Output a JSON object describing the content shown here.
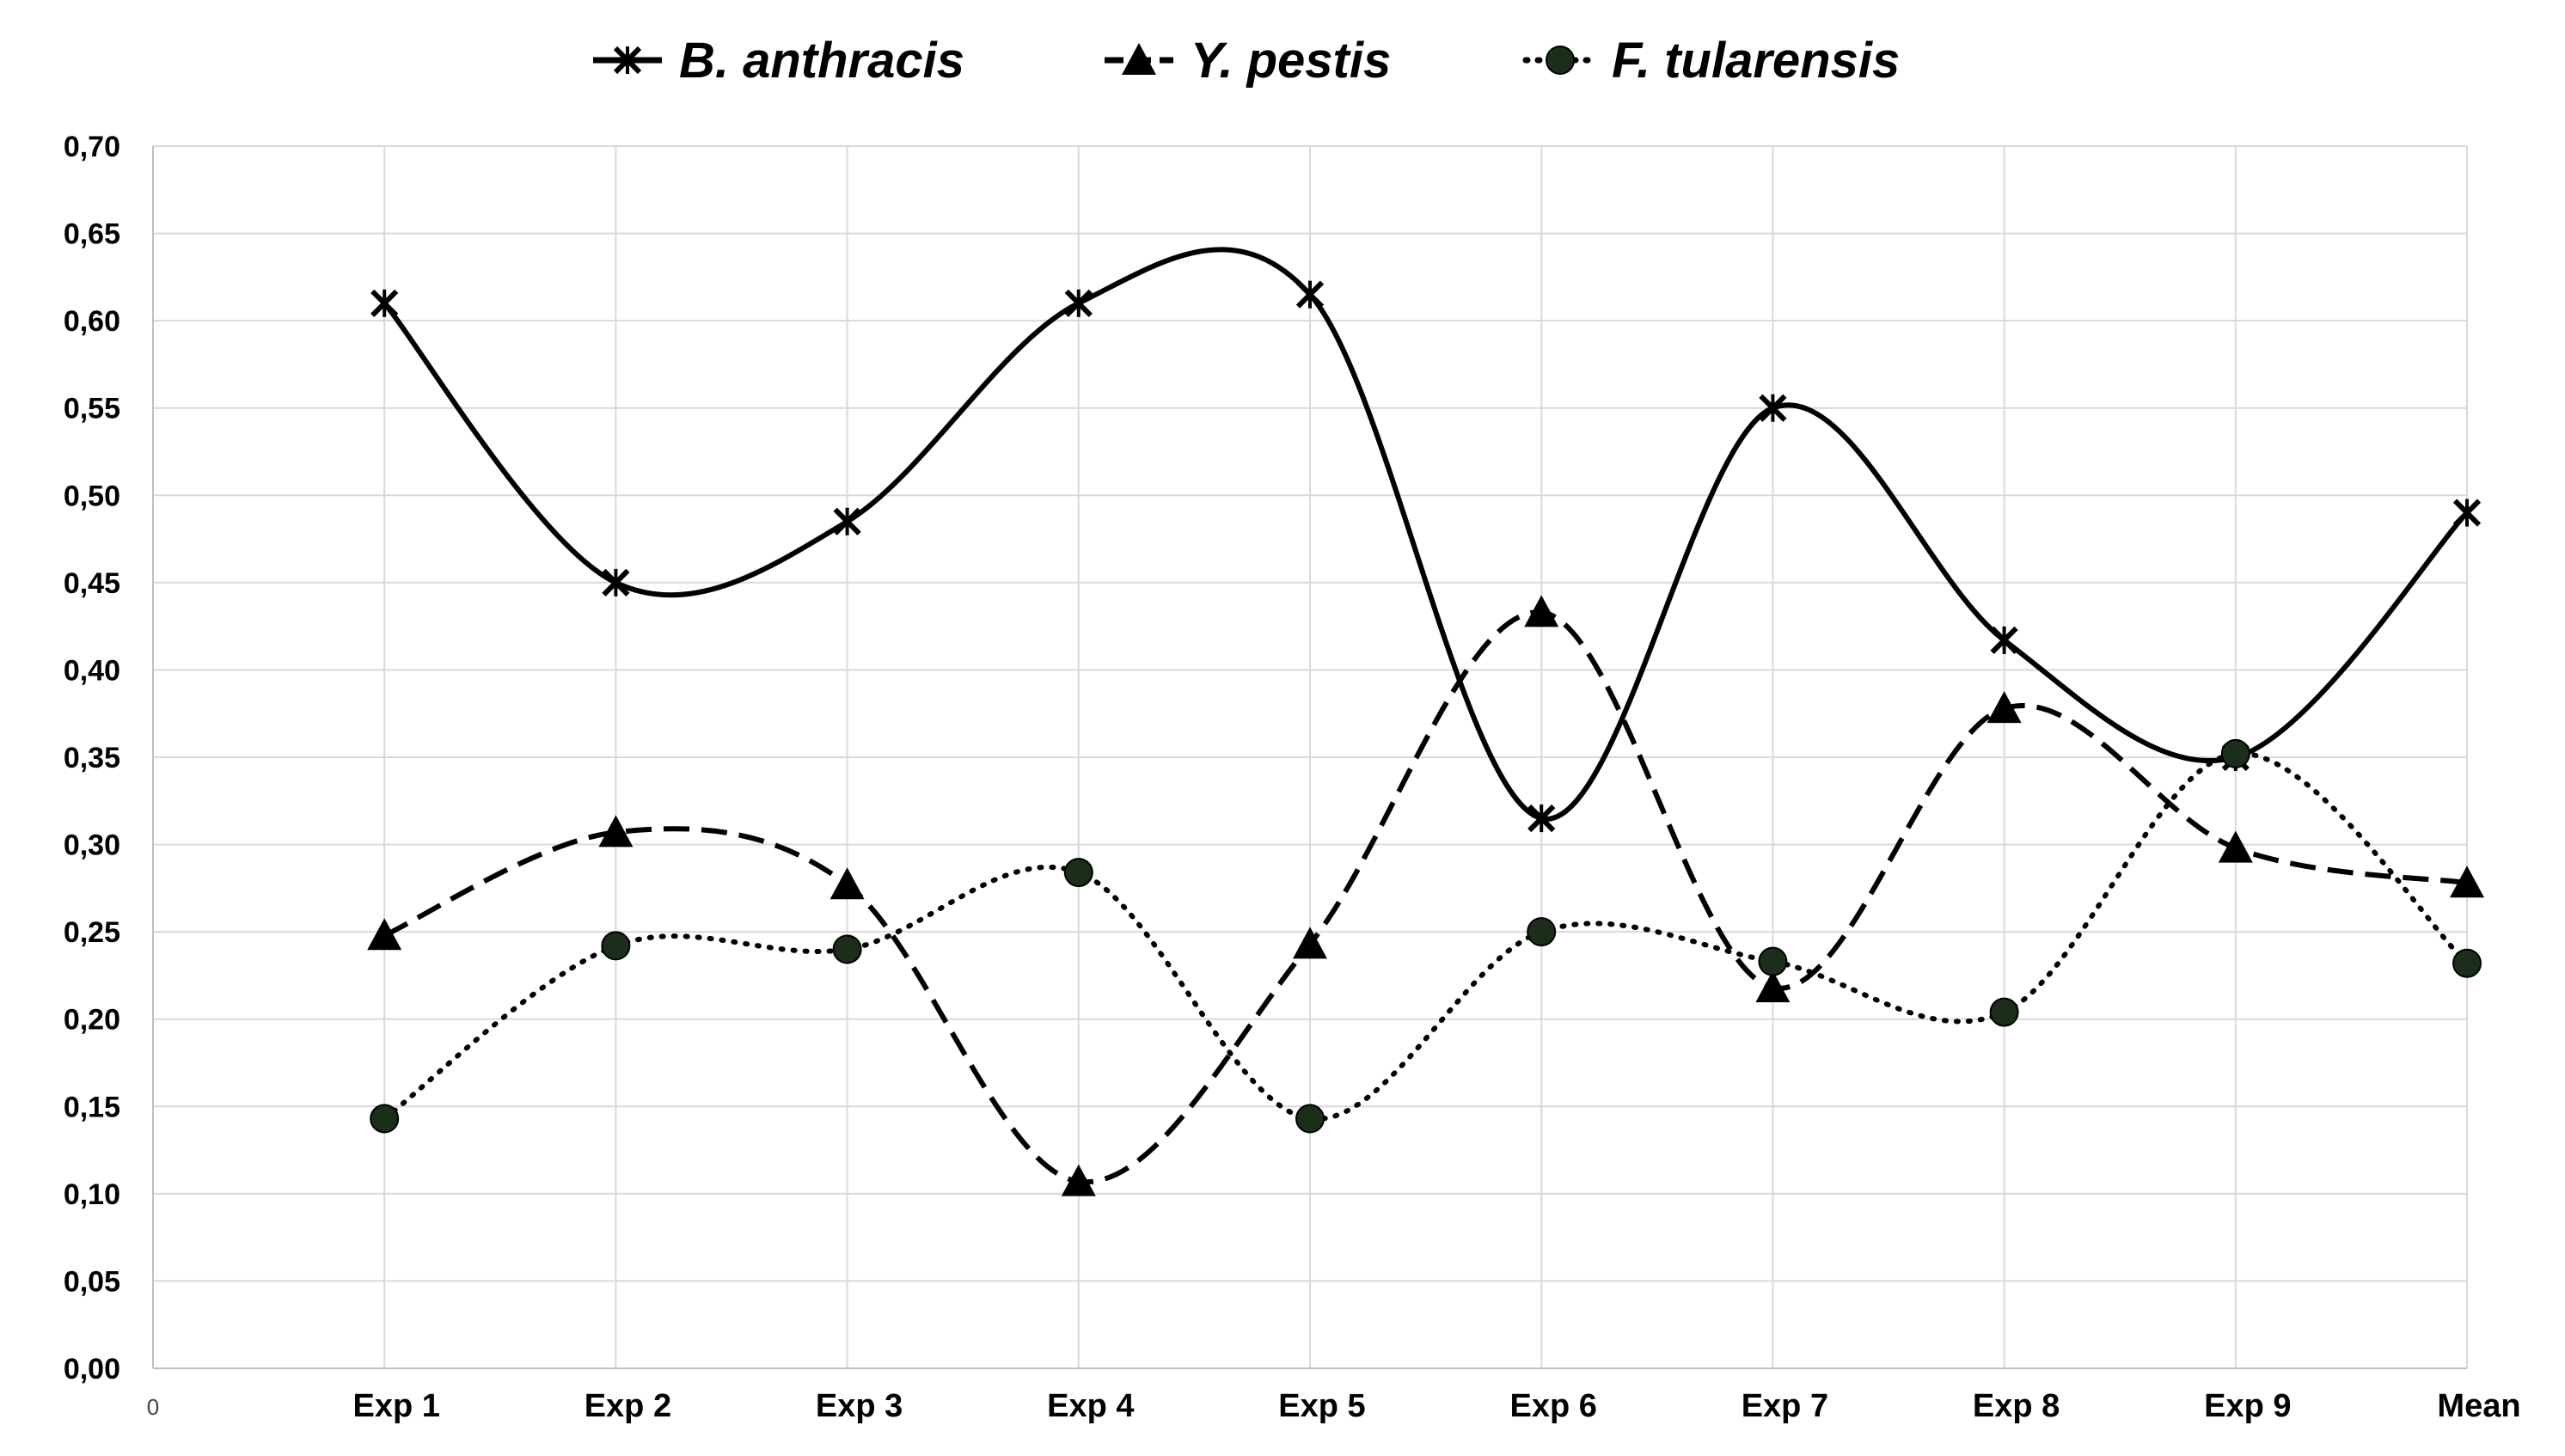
{
  "chart_data": {
    "type": "line",
    "origin_label": "0",
    "categories": [
      "Exp 1",
      "Exp 2",
      "Exp 3",
      "Exp 4",
      "Exp 5",
      "Exp 6",
      "Exp 7",
      "Exp 8",
      "Exp 9",
      "Mean"
    ],
    "y_ticks": [
      "0,00",
      "0,05",
      "0,10",
      "0,15",
      "0,20",
      "0,25",
      "0,30",
      "0,35",
      "0,40",
      "0,45",
      "0,50",
      "0,55",
      "0,60",
      "0,65",
      "0,70"
    ],
    "ylim": [
      0,
      0.7
    ],
    "grid": true,
    "legend_position": "top",
    "series": [
      {
        "name": "B. anthracis",
        "marker": "x",
        "line_style": "solid",
        "values": [
          0.61,
          0.45,
          0.485,
          0.61,
          0.615,
          0.315,
          0.55,
          0.417,
          0.35,
          0.49
        ]
      },
      {
        "name": "Y. pestis",
        "marker": "triangle",
        "line_style": "dashed",
        "values": [
          0.248,
          0.307,
          0.277,
          0.107,
          0.243,
          0.433,
          0.218,
          0.378,
          0.298,
          0.278
        ]
      },
      {
        "name": "F. tularensis",
        "marker": "circle",
        "line_style": "dotted",
        "values": [
          0.143,
          0.242,
          0.24,
          0.284,
          0.143,
          0.25,
          0.233,
          0.204,
          0.352,
          0.232
        ]
      }
    ],
    "colors": {
      "line": "#000000",
      "marker_fill": "#1a2e1a",
      "grid": "#d9d9d9"
    }
  }
}
